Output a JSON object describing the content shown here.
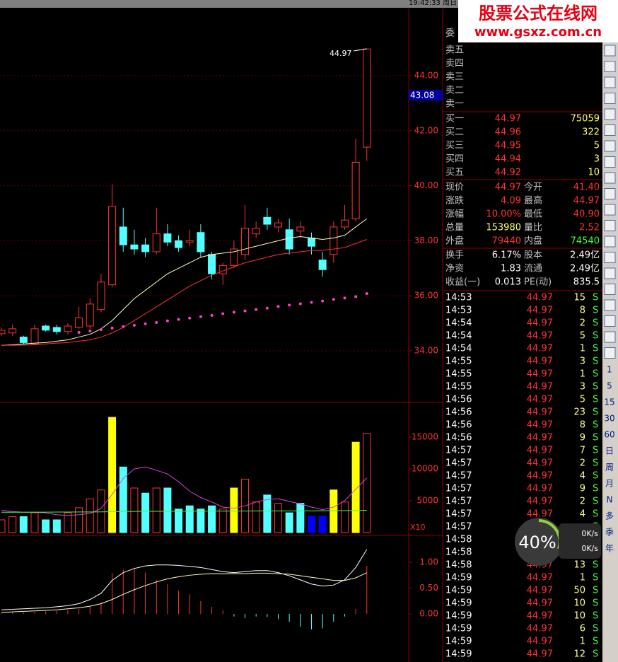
{
  "header": {
    "clock": "19:42:33 周日"
  },
  "watermark": {
    "title": "股票公式在线网",
    "url": "www.gsxz.com.cn"
  },
  "price_chart": {
    "annotation": "44.97",
    "current_label": "43.08",
    "ylim": [
      32.15,
      46.44
    ],
    "yticks": [
      {
        "value": 34,
        "label": "34.00"
      },
      {
        "value": 36,
        "label": "36.00"
      },
      {
        "value": 38,
        "label": "38.00"
      },
      {
        "value": 40,
        "label": "40.00"
      },
      {
        "value": 42,
        "label": "42.00"
      },
      {
        "value": 44,
        "label": "44.00"
      }
    ],
    "open": [
      34.62,
      34.65,
      34.5,
      34.25,
      34.9,
      34.85,
      34.7,
      34.85,
      34.9,
      35.5,
      36.4,
      38.5,
      37.85,
      37.85,
      37.6,
      38.25,
      38.0,
      37.95,
      38.3,
      37.5,
      36.8,
      37.1,
      37.5,
      38.25,
      38.85,
      38.5,
      38.4,
      38.35,
      38.1,
      37.3,
      37.5,
      38.5,
      38.8,
      41.4
    ],
    "close": [
      34.75,
      34.8,
      34.3,
      34.8,
      34.75,
      34.7,
      34.9,
      35.2,
      35.7,
      36.5,
      39.25,
      37.85,
      37.7,
      37.6,
      38.25,
      37.95,
      37.75,
      38.0,
      37.6,
      36.8,
      37.1,
      37.7,
      38.45,
      38.45,
      38.6,
      38.65,
      37.7,
      38.5,
      37.8,
      36.95,
      38.5,
      38.75,
      40.85,
      44.97
    ],
    "high": [
      34.85,
      34.95,
      34.55,
      34.95,
      34.95,
      34.95,
      35.0,
      35.6,
      35.9,
      36.8,
      40.05,
      39.2,
      38.4,
      38.1,
      39.2,
      38.6,
      38.2,
      38.4,
      38.6,
      37.6,
      37.2,
      38.0,
      39.3,
      38.7,
      39.2,
      38.8,
      38.8,
      38.7,
      38.3,
      37.6,
      38.7,
      39.3,
      41.7,
      44.97
    ],
    "low": [
      34.55,
      34.55,
      34.25,
      34.2,
      34.7,
      34.6,
      34.6,
      34.8,
      34.8,
      35.4,
      36.3,
      37.6,
      37.5,
      37.4,
      37.5,
      37.8,
      37.6,
      37.8,
      37.4,
      36.6,
      36.4,
      37.0,
      37.3,
      38.1,
      38.4,
      38.3,
      37.5,
      38.1,
      37.5,
      36.7,
      37.2,
      38.4,
      38.7,
      40.9
    ],
    "ma_white": [
      34.2,
      34.22,
      34.25,
      34.28,
      34.3,
      34.35,
      34.4,
      34.5,
      34.6,
      34.8,
      35.1,
      35.5,
      35.9,
      36.2,
      36.5,
      36.8,
      37.0,
      37.2,
      37.4,
      37.5,
      37.55,
      37.6,
      37.7,
      37.8,
      37.9,
      38.0,
      38.1,
      38.15,
      38.1,
      38.05,
      38.1,
      38.2,
      38.5,
      38.8
    ],
    "ma_red": [
      34.2,
      34.2,
      34.21,
      34.22,
      34.25,
      34.28,
      34.3,
      34.35,
      34.4,
      34.5,
      34.65,
      34.85,
      35.1,
      35.35,
      35.6,
      35.85,
      36.1,
      36.35,
      36.55,
      36.75,
      36.9,
      37.05,
      37.2,
      37.3,
      37.4,
      37.5,
      37.55,
      37.6,
      37.65,
      37.65,
      37.7,
      37.75,
      37.9,
      38.05
    ],
    "sar": [
      null,
      null,
      null,
      null,
      null,
      null,
      null,
      34.67,
      34.72,
      34.77,
      34.83,
      34.88,
      34.93,
      34.98,
      35.03,
      35.09,
      35.14,
      35.19,
      35.24,
      35.29,
      35.35,
      35.4,
      35.45,
      35.5,
      35.55,
      35.61,
      35.66,
      35.71,
      35.76,
      35.81,
      35.87,
      35.92,
      35.97,
      36.08
    ]
  },
  "volume_chart": {
    "scale_label": "X10",
    "ylim": [
      0,
      19780
    ],
    "yticks": [
      5000,
      10000,
      15000
    ],
    "values": [
      2000,
      2500,
      2500,
      3100,
      2000,
      2000,
      3100,
      3900,
      5300,
      6700,
      18100,
      10300,
      7000,
      6200,
      7000,
      7000,
      3700,
      4200,
      3700,
      4200,
      3700,
      7000,
      8400,
      4800,
      5900,
      4600,
      3100,
      4600,
      2600,
      2600,
      6700,
      4800,
      14200,
      15600
    ],
    "colors": [
      "#ff3232",
      "#ff3232",
      "#54ffff",
      "#ff3232",
      "#54ffff",
      "#54ffff",
      "#ff3232",
      "#ff3232",
      "#ff3232",
      "#ff3232",
      "#ffff00",
      "#54ffff",
      "#ff3232",
      "#54ffff",
      "#ff3232",
      "#54ffff",
      "#54ffff",
      "#54ffff",
      "#54ffff",
      "#54ffff",
      "#ff3232",
      "#ffff00",
      "#ff3232",
      "#ff3232",
      "#54ffff",
      "#ff3232",
      "#54ffff",
      "#54ffff",
      "#0000ff",
      "#0000ff",
      "#ffff00",
      "#ff3232",
      "#ffff00",
      "#ff3232"
    ],
    "ma_magenta": [
      3500,
      3300,
      3200,
      3200,
      3100,
      2800,
      2700,
      2800,
      3000,
      3800,
      6000,
      8500,
      10000,
      10300,
      9800,
      9200,
      8000,
      6500,
      5500,
      4800,
      4000,
      3800,
      4200,
      4800,
      5200,
      5300,
      4900,
      4500,
      4000,
      3600,
      4000,
      5000,
      6800,
      8600
    ],
    "ma_green": [
      3200,
      3200,
      3200,
      3210,
      3210,
      3220,
      3220,
      3230,
      3240,
      3250,
      3280,
      3300,
      3320,
      3330,
      3340,
      3350,
      3350,
      3360,
      3360,
      3370,
      3370,
      3380,
      3390,
      3400,
      3400,
      3410,
      3410,
      3420,
      3420,
      3430,
      3440,
      3450,
      3470,
      3500
    ]
  },
  "macd_chart": {
    "ylim": [
      -0.93,
      1.48
    ],
    "yticks": [
      {
        "value": 0,
        "label": "0.00"
      },
      {
        "value": 0.5,
        "label": "0.50"
      },
      {
        "value": 1,
        "label": "1.00"
      }
    ],
    "bars": [
      0.02,
      0.03,
      0.03,
      0.04,
      0.05,
      0.06,
      0.08,
      0.1,
      0.14,
      0.22,
      0.79,
      0.86,
      0.9,
      0.8,
      0.66,
      0.58,
      0.45,
      0.38,
      0.25,
      0.14,
      0.07,
      -0.05,
      -0.08,
      -0.05,
      -0.06,
      -0.1,
      -0.15,
      -0.25,
      -0.3,
      -0.28,
      -0.15,
      -0.05,
      0.1,
      0.93
    ],
    "dif": [
      0.08,
      0.09,
      0.1,
      0.11,
      0.12,
      0.14,
      0.16,
      0.2,
      0.28,
      0.4,
      0.65,
      0.8,
      0.88,
      0.93,
      0.95,
      0.95,
      0.94,
      0.92,
      0.9,
      0.86,
      0.82,
      0.8,
      0.82,
      0.84,
      0.84,
      0.8,
      0.74,
      0.66,
      0.58,
      0.54,
      0.56,
      0.66,
      0.9,
      1.25
    ],
    "dea": [
      0.03,
      0.04,
      0.05,
      0.06,
      0.07,
      0.08,
      0.1,
      0.12,
      0.15,
      0.2,
      0.28,
      0.38,
      0.47,
      0.55,
      0.62,
      0.68,
      0.72,
      0.75,
      0.77,
      0.78,
      0.78,
      0.78,
      0.78,
      0.79,
      0.79,
      0.78,
      0.77,
      0.74,
      0.71,
      0.68,
      0.65,
      0.65,
      0.7,
      0.8
    ]
  },
  "quote": {
    "header": "委",
    "sell": [
      "卖五",
      "卖四",
      "卖三",
      "卖二",
      "卖一"
    ],
    "buy": [
      [
        "买一",
        "44.97",
        "75059"
      ],
      [
        "买二",
        "44.96",
        "322"
      ],
      [
        "买三",
        "44.95",
        "5"
      ],
      [
        "买四",
        "44.94",
        "3"
      ],
      [
        "买五",
        "44.92",
        "10"
      ]
    ],
    "stats": [
      [
        "现价",
        "44.97",
        "今开",
        "41.40"
      ],
      [
        "涨跌",
        "4.09",
        "最高",
        "44.97"
      ],
      [
        "涨幅",
        "10.00%",
        "最低",
        "40.90"
      ],
      [
        "总量",
        "153980",
        "量比",
        "2.52"
      ],
      [
        "外盘",
        "79440",
        "内盘",
        "74540"
      ]
    ],
    "info": [
      [
        "换手",
        "6.17%",
        "股本",
        "2.49亿"
      ],
      [
        "净资",
        "1.83",
        "流通",
        "2.49亿"
      ],
      [
        "收益(一)",
        "0.013",
        "PE(动)",
        "835.5"
      ]
    ]
  },
  "ticks": [
    [
      "14:53",
      44.97,
      15,
      "S"
    ],
    [
      "14:53",
      44.97,
      8,
      "S"
    ],
    [
      "14:54",
      44.97,
      2,
      "S"
    ],
    [
      "14:54",
      44.97,
      5,
      "S"
    ],
    [
      "14:54",
      44.97,
      1,
      "S"
    ],
    [
      "14:55",
      44.97,
      3,
      "S"
    ],
    [
      "14:55",
      44.97,
      1,
      "S"
    ],
    [
      "14:55",
      44.97,
      3,
      "S"
    ],
    [
      "14:56",
      44.97,
      5,
      "S"
    ],
    [
      "14:56",
      44.97,
      23,
      "S"
    ],
    [
      "14:56",
      44.97,
      8,
      "S"
    ],
    [
      "14:56",
      44.97,
      9,
      "S"
    ],
    [
      "14:57",
      44.97,
      7,
      "S"
    ],
    [
      "14:57",
      44.97,
      2,
      "S"
    ],
    [
      "14:57",
      44.97,
      4,
      "S"
    ],
    [
      "14:57",
      44.97,
      9,
      "S"
    ],
    [
      "14:57",
      44.97,
      2,
      "S"
    ],
    [
      "14:57",
      44.97,
      4,
      "S"
    ],
    [
      "14:57",
      44.97,
      null,
      "S"
    ],
    [
      "14:58",
      44.97,
      null,
      "S"
    ],
    [
      "14:58",
      44.97,
      null,
      "S"
    ],
    [
      "14:58",
      44.97,
      13,
      "S"
    ],
    [
      "14:59",
      44.97,
      1,
      "S"
    ],
    [
      "14:59",
      44.97,
      50,
      "S"
    ],
    [
      "14:59",
      44.97,
      10,
      "S"
    ],
    [
      "14:59",
      44.97,
      10,
      "S"
    ],
    [
      "14:59",
      44.97,
      6,
      "S"
    ],
    [
      "14:59",
      44.97,
      1,
      "S"
    ],
    [
      "14:59",
      44.97,
      12,
      "S"
    ]
  ],
  "sidebar": {
    "periods": [
      "1",
      "5",
      "15",
      "30",
      "60",
      "日",
      "周",
      "月",
      "N",
      "多",
      "季",
      "年"
    ]
  },
  "speed_widget": {
    "percent": "40%",
    "up": "0K/s",
    "down": "0K/s"
  }
}
